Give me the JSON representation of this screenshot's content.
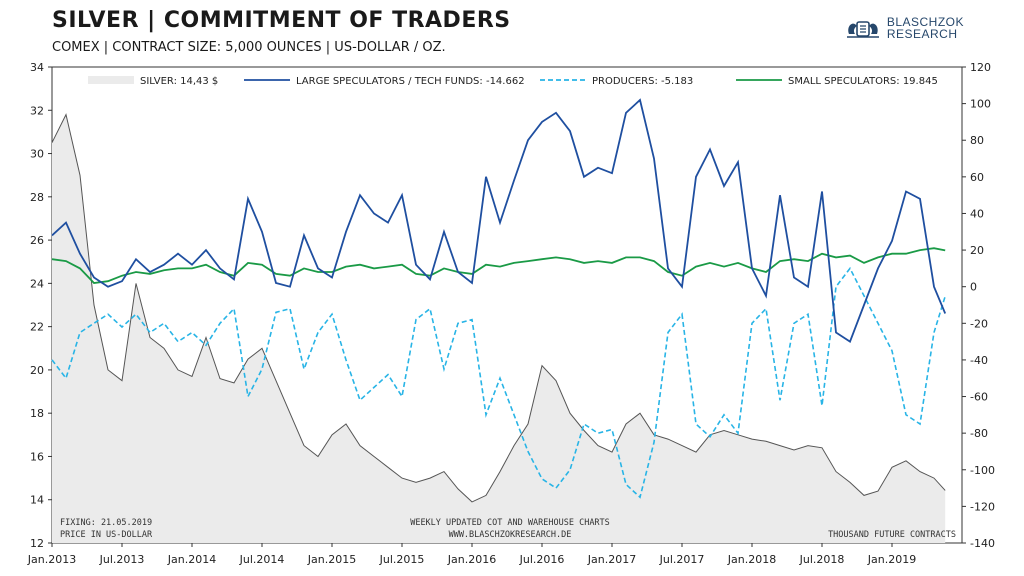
{
  "header": {
    "title": "SILVER | COMMITMENT OF TRADERS",
    "subtitle": "COMEX | CONTRACT SIZE: 5,000 OUNCES | US-DOLLAR / OZ.",
    "logo_line1": "BLASCHZOK",
    "logo_line2": "RESEARCH"
  },
  "notes": {
    "fixing": "FIXING: 21.05.2019",
    "price_unit": "PRICE IN US-DOLLAR",
    "weekly": "WEEKLY UPDATED COT AND WAREHOUSE CHARTS",
    "website": "WWW.BLASCHZOKRESEARCH.DE",
    "contracts": "THOUSAND FUTURE CONTRACTS"
  },
  "colors": {
    "silver_fill": "#ebebeb",
    "silver_line": "#555555",
    "large_specs": "#1f4fa0",
    "producers": "#28b4e6",
    "small_specs": "#1a9a46"
  },
  "chart_data": {
    "type": "line",
    "x_axis": {
      "ticks": [
        "Jan.2013",
        "Jul.2013",
        "Jan.2014",
        "Jul.2014",
        "Jan.2015",
        "Jul.2015",
        "Jan.2016",
        "Jul.2016",
        "Jan.2017",
        "Jul.2017",
        "Jan.2018",
        "Jul.2018",
        "Jan.2019"
      ],
      "range": [
        "2013-01",
        "2019-05"
      ]
    },
    "y_left": {
      "label": "PRICE IN US-DOLLAR",
      "ylim": [
        12,
        34
      ],
      "ticks": [
        12,
        14,
        16,
        18,
        20,
        22,
        24,
        26,
        28,
        30,
        32,
        34
      ]
    },
    "y_right": {
      "label": "THOUSAND FUTURE CONTRACTS",
      "ylim": [
        -140,
        120
      ],
      "ticks": [
        -140,
        -120,
        -100,
        -80,
        -60,
        -40,
        -20,
        0,
        20,
        40,
        60,
        80,
        100,
        120
      ]
    },
    "legend": [
      {
        "key": "silver",
        "label": "SILVER: 14,43 $"
      },
      {
        "key": "large",
        "label": "LARGE SPECULATORS / TECH FUNDS: -14.662"
      },
      {
        "key": "producers",
        "label": "PRODUCERS: -5.183"
      },
      {
        "key": "small",
        "label": "SMALL SPECULATORS: 19.845"
      }
    ],
    "series": [
      {
        "name": "SILVER: 14,43 $",
        "axis": "left",
        "x": [
          2013.0,
          2013.1,
          2013.2,
          2013.3,
          2013.4,
          2013.5,
          2013.6,
          2013.7,
          2013.8,
          2013.9,
          2014.0,
          2014.1,
          2014.2,
          2014.3,
          2014.4,
          2014.5,
          2014.6,
          2014.7,
          2014.8,
          2014.9,
          2015.0,
          2015.1,
          2015.2,
          2015.3,
          2015.4,
          2015.5,
          2015.6,
          2015.7,
          2015.8,
          2015.9,
          2016.0,
          2016.1,
          2016.2,
          2016.3,
          2016.4,
          2016.5,
          2016.6,
          2016.7,
          2016.8,
          2016.9,
          2017.0,
          2017.1,
          2017.2,
          2017.3,
          2017.4,
          2017.5,
          2017.6,
          2017.7,
          2017.8,
          2017.9,
          2018.0,
          2018.1,
          2018.2,
          2018.3,
          2018.4,
          2018.5,
          2018.6,
          2018.7,
          2018.8,
          2018.9,
          2019.0,
          2019.1,
          2019.2,
          2019.3,
          2019.38
        ],
        "y": [
          30.5,
          31.8,
          29.0,
          23.0,
          20.0,
          19.5,
          24.0,
          21.5,
          21.0,
          20.0,
          19.7,
          21.5,
          19.6,
          19.4,
          20.5,
          21.0,
          19.5,
          18.0,
          16.5,
          16.0,
          17.0,
          17.5,
          16.5,
          16.0,
          15.5,
          15.0,
          14.8,
          15.0,
          15.3,
          14.5,
          13.9,
          14.2,
          15.3,
          16.5,
          17.5,
          20.2,
          19.5,
          18.0,
          17.2,
          16.5,
          16.2,
          17.5,
          18.0,
          17.0,
          16.8,
          16.5,
          16.2,
          17.0,
          17.2,
          17.0,
          16.8,
          16.7,
          16.5,
          16.3,
          16.5,
          16.4,
          15.3,
          14.8,
          14.2,
          14.4,
          15.5,
          15.8,
          15.3,
          15.0,
          14.43
        ]
      },
      {
        "name": "LARGE SPECULATORS / TECH FUNDS: -14.662",
        "axis": "right",
        "x": [
          2013.0,
          2013.1,
          2013.2,
          2013.3,
          2013.4,
          2013.5,
          2013.6,
          2013.7,
          2013.8,
          2013.9,
          2014.0,
          2014.1,
          2014.2,
          2014.3,
          2014.4,
          2014.5,
          2014.6,
          2014.7,
          2014.8,
          2014.9,
          2015.0,
          2015.1,
          2015.2,
          2015.3,
          2015.4,
          2015.5,
          2015.6,
          2015.7,
          2015.8,
          2015.9,
          2016.0,
          2016.1,
          2016.2,
          2016.3,
          2016.4,
          2016.5,
          2016.6,
          2016.7,
          2016.8,
          2016.9,
          2017.0,
          2017.1,
          2017.2,
          2017.3,
          2017.4,
          2017.5,
          2017.6,
          2017.7,
          2017.8,
          2017.9,
          2018.0,
          2018.1,
          2018.2,
          2018.3,
          2018.4,
          2018.5,
          2018.6,
          2018.7,
          2018.8,
          2018.9,
          2019.0,
          2019.1,
          2019.2,
          2019.3,
          2019.38
        ],
        "y": [
          28,
          35,
          18,
          5,
          0,
          3,
          15,
          8,
          12,
          18,
          12,
          20,
          10,
          4,
          48,
          30,
          2,
          0,
          28,
          10,
          5,
          30,
          50,
          40,
          35,
          50,
          12,
          4,
          30,
          8,
          2,
          60,
          35,
          58,
          80,
          90,
          95,
          85,
          60,
          65,
          62,
          95,
          102,
          70,
          10,
          0,
          60,
          75,
          55,
          68,
          10,
          -5,
          50,
          5,
          0,
          52,
          -25,
          -30,
          -10,
          10,
          25,
          52,
          48,
          0,
          -14.662
        ]
      },
      {
        "name": "PRODUCERS: -5.183",
        "axis": "right",
        "x": [
          2013.0,
          2013.1,
          2013.2,
          2013.3,
          2013.4,
          2013.5,
          2013.6,
          2013.7,
          2013.8,
          2013.9,
          2014.0,
          2014.1,
          2014.2,
          2014.3,
          2014.4,
          2014.5,
          2014.6,
          2014.7,
          2014.8,
          2014.9,
          2015.0,
          2015.1,
          2015.2,
          2015.3,
          2015.4,
          2015.5,
          2015.6,
          2015.7,
          2015.8,
          2015.9,
          2016.0,
          2016.1,
          2016.2,
          2016.3,
          2016.4,
          2016.5,
          2016.6,
          2016.7,
          2016.8,
          2016.9,
          2017.0,
          2017.1,
          2017.2,
          2017.3,
          2017.4,
          2017.5,
          2017.6,
          2017.7,
          2017.8,
          2017.9,
          2018.0,
          2018.1,
          2018.2,
          2018.3,
          2018.4,
          2018.5,
          2018.6,
          2018.7,
          2018.8,
          2018.9,
          2019.0,
          2019.1,
          2019.2,
          2019.3,
          2019.38
        ],
        "y": [
          -40,
          -50,
          -25,
          -20,
          -15,
          -22,
          -15,
          -25,
          -20,
          -30,
          -25,
          -32,
          -20,
          -12,
          -60,
          -45,
          -14,
          -12,
          -45,
          -25,
          -15,
          -40,
          -62,
          -55,
          -48,
          -60,
          -18,
          -12,
          -45,
          -20,
          -18,
          -70,
          -50,
          -70,
          -90,
          -105,
          -110,
          -100,
          -75,
          -80,
          -78,
          -108,
          -115,
          -85,
          -25,
          -15,
          -75,
          -82,
          -70,
          -80,
          -20,
          -12,
          -62,
          -20,
          -15,
          -65,
          0,
          10,
          -5,
          -20,
          -35,
          -70,
          -75,
          -25,
          -5.183
        ]
      },
      {
        "name": "SMALL SPECULATORS: 19.845",
        "axis": "right",
        "x": [
          2013.0,
          2013.1,
          2013.2,
          2013.3,
          2013.4,
          2013.5,
          2013.6,
          2013.7,
          2013.8,
          2013.9,
          2014.0,
          2014.1,
          2014.2,
          2014.3,
          2014.4,
          2014.5,
          2014.6,
          2014.7,
          2014.8,
          2014.9,
          2015.0,
          2015.1,
          2015.2,
          2015.3,
          2015.4,
          2015.5,
          2015.6,
          2015.7,
          2015.8,
          2015.9,
          2016.0,
          2016.1,
          2016.2,
          2016.3,
          2016.4,
          2016.5,
          2016.6,
          2016.7,
          2016.8,
          2016.9,
          2017.0,
          2017.1,
          2017.2,
          2017.3,
          2017.4,
          2017.5,
          2017.6,
          2017.7,
          2017.8,
          2017.9,
          2018.0,
          2018.1,
          2018.2,
          2018.3,
          2018.4,
          2018.5,
          2018.6,
          2018.7,
          2018.8,
          2018.9,
          2019.0,
          2019.1,
          2019.2,
          2019.3,
          2019.38
        ],
        "y": [
          15,
          14,
          10,
          2,
          3,
          6,
          8,
          7,
          9,
          10,
          10,
          12,
          8,
          6,
          13,
          12,
          7,
          6,
          10,
          8,
          8,
          11,
          12,
          10,
          11,
          12,
          7,
          6,
          10,
          8,
          7,
          12,
          11,
          13,
          14,
          15,
          16,
          15,
          13,
          14,
          13,
          16,
          16,
          14,
          8,
          6,
          11,
          13,
          11,
          13,
          10,
          8,
          14,
          15,
          14,
          18,
          16,
          17,
          13,
          16,
          18,
          18,
          20,
          21,
          19.845
        ]
      }
    ]
  }
}
